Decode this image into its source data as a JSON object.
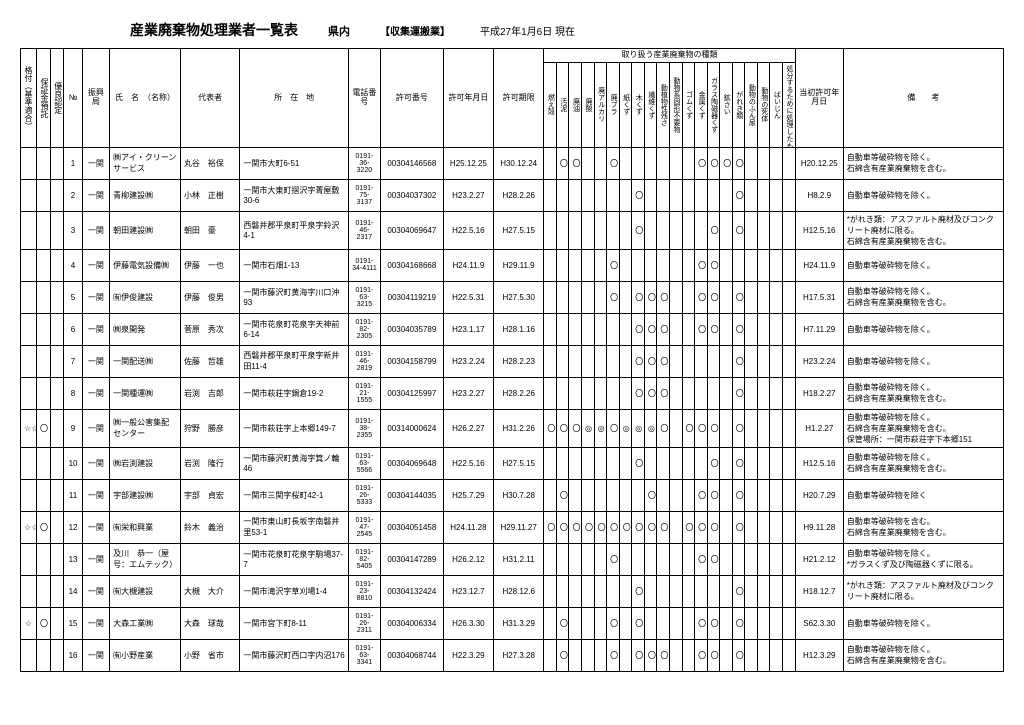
{
  "header": {
    "title": "産業廃棄物処理業者一覧表",
    "region": "県内",
    "type": "【収集運搬業】",
    "as_of": "平成27年1月6日 現在"
  },
  "waste_group_label": "取り扱う産業廃棄物の種類",
  "col_labels": {
    "rank": "格付（基準適合）",
    "deposit": "保証金預託",
    "excellent": "優良認定",
    "no": "№",
    "bureau": "振興局",
    "name": "氏　名　（名称）",
    "rep": "代表者",
    "addr": "所　在　地",
    "tel": "電話番号",
    "permit_no": "許可番号",
    "permit_date": "許可年月日",
    "permit_exp": "許可期限",
    "first_date": "当初許可年月日",
    "note": "備　　考"
  },
  "waste_types": [
    "燃え殻",
    "汚泥",
    "廃油",
    "廃酸",
    "廃アルカリ",
    "廃プラ",
    "紙くず",
    "木くず",
    "繊維くず",
    "動植物性残さ",
    "動物系固形不要物",
    "ゴムくず",
    "金属くず",
    "ガラス陶磁器くず",
    "鉱さい",
    "がれき類",
    "動物のふん尿",
    "動物の死体",
    "ばいじん",
    "処分するために処理したもの"
  ],
  "rows": [
    {
      "no": "1",
      "bureau": "一関",
      "name": "㈱アイ・クリーンサービス",
      "rep": "丸谷　裕保",
      "addr": "一関市大町6-51",
      "tel": "0191-36-3220",
      "pno": "00304146568",
      "pdate": "H25.12.25",
      "pexp": "H30.12.24",
      "w": [
        "",
        "〇",
        "〇",
        "",
        "",
        "〇",
        "",
        "",
        "",
        "",
        "",
        "",
        "〇",
        "〇",
        "〇",
        "〇",
        "",
        "",
        "",
        ""
      ],
      "first": "H20.12.25",
      "note": "自動車等破砕物を除く。\n石綿含有産業廃棄物を含む。"
    },
    {
      "no": "2",
      "bureau": "一関",
      "name": "青柳建設㈱",
      "rep": "小林　正樹",
      "addr": "一関市大東町摺沢字菁屋敷30-6",
      "tel": "0191-75-3137",
      "pno": "00304037302",
      "pdate": "H23.2.27",
      "pexp": "H28.2.26",
      "w": [
        "",
        "",
        "",
        "",
        "",
        "",
        "",
        "〇",
        "",
        "",
        "",
        "",
        "",
        "",
        "",
        "〇",
        "",
        "",
        "",
        ""
      ],
      "first": "H8.2.9",
      "note": "自動車等破砕物を除く。"
    },
    {
      "no": "3",
      "bureau": "一関",
      "name": "朝田建設㈱",
      "rep": "朝田　豪",
      "addr": "西磐井郡平泉町平泉字鈴沢4-1",
      "tel": "0191-46-2317",
      "pno": "00304069647",
      "pdate": "H22.5.16",
      "pexp": "H27.5.15",
      "w": [
        "",
        "",
        "",
        "",
        "",
        "",
        "",
        "〇",
        "",
        "",
        "",
        "",
        "",
        "〇",
        "",
        "〇",
        "",
        "",
        "",
        ""
      ],
      "first": "H12.5.16",
      "note": "*がれき類：アスファルト廃材及びコンクリート廃材に限る。\n石綿含有産業廃棄物を含む。"
    },
    {
      "no": "4",
      "bureau": "一関",
      "name": "伊藤電気設備㈱",
      "rep": "伊藤　一也",
      "addr": "一関市石畑1-13",
      "tel": "0191-34-4111",
      "pno": "00304168668",
      "pdate": "H24.11.9",
      "pexp": "H29.11.9",
      "w": [
        "",
        "",
        "",
        "",
        "",
        "〇",
        "",
        "",
        "",
        "",
        "",
        "",
        "〇",
        "〇",
        "",
        "",
        "",
        "",
        "",
        ""
      ],
      "first": "H24.11.9",
      "note": "自動車等破砕物を除く。"
    },
    {
      "no": "5",
      "bureau": "一関",
      "name": "㈲伊俊建設",
      "rep": "伊藤　俊男",
      "addr": "一関市藤沢町黄海字川口沖93",
      "tel": "0191-63-3215",
      "pno": "00304119219",
      "pdate": "H22.5.31",
      "pexp": "H27.5.30",
      "w": [
        "",
        "",
        "",
        "",
        "",
        "〇",
        "",
        "〇",
        "〇",
        "〇",
        "",
        "",
        "〇",
        "〇",
        "",
        "〇",
        "",
        "",
        "",
        ""
      ],
      "first": "H17.5.31",
      "note": "自動車等破砕物を除く。\n石綿含有産業廃棄物を含む。"
    },
    {
      "no": "6",
      "bureau": "一関",
      "name": "㈱泉開発",
      "rep": "菅原　秀次",
      "addr": "一関市花泉町花泉字天神前6-14",
      "tel": "0191-82-2305",
      "pno": "00304035789",
      "pdate": "H23.1.17",
      "pexp": "H28.1.16",
      "w": [
        "",
        "",
        "",
        "",
        "",
        "",
        "",
        "〇",
        "〇",
        "〇",
        "",
        "",
        "〇",
        "〇",
        "",
        "〇",
        "",
        "",
        "",
        ""
      ],
      "first": "H7.11.29",
      "note": "自動車等破砕物を除く。"
    },
    {
      "no": "7",
      "bureau": "一関",
      "name": "一関配送㈱",
      "rep": "佐藤　哲雄",
      "addr": "西磐井郡平泉町平泉字新井田11-4",
      "tel": "0191-46-2819",
      "pno": "00304158799",
      "pdate": "H23.2.24",
      "pexp": "H28.2.23",
      "w": [
        "",
        "",
        "",
        "",
        "",
        "",
        "",
        "〇",
        "〇",
        "〇",
        "",
        "",
        "",
        "",
        "",
        "〇",
        "",
        "",
        "",
        ""
      ],
      "first": "H23.2.24",
      "note": "自動車等破砕物を除く。"
    },
    {
      "no": "8",
      "bureau": "一関",
      "name": "一関種運㈱",
      "rep": "岩渕　吉郎",
      "addr": "一関市萩荘字鍋倉19-2",
      "tel": "0191-21-1555",
      "pno": "00304125997",
      "pdate": "H23.2.27",
      "pexp": "H28.2.26",
      "w": [
        "",
        "",
        "",
        "",
        "",
        "",
        "",
        "〇",
        "〇",
        "〇",
        "",
        "",
        "",
        "",
        "",
        "〇",
        "",
        "",
        "",
        ""
      ],
      "first": "H18.2.27",
      "note": "自動車等破砕物を除く。\n石綿含有産業廃棄物を含む。"
    },
    {
      "star": "☆☆",
      "o": "〇",
      "no": "9",
      "bureau": "一関",
      "name": "㈱一般公害集配センター",
      "rep": "狩野　勝彦",
      "addr": "一関市萩荘字上本郷149-7",
      "tel": "0191-38-2355",
      "pno": "00314000624",
      "pdate": "H26.2.27",
      "pexp": "H31.2.26",
      "w": [
        "〇",
        "〇",
        "〇",
        "◎",
        "◎",
        "〇",
        "◎",
        "◎",
        "◎",
        "〇",
        "",
        "〇",
        "〇",
        "〇",
        "",
        "〇",
        "",
        "",
        "",
        ""
      ],
      "first": "H1.2.27",
      "note": "自動車等破砕物を除く。\n石綿含有産業廃棄物を含む。\n保管場所：一関市萩荘字下本郷151"
    },
    {
      "no": "10",
      "bureau": "一関",
      "name": "㈱岩渕建設",
      "rep": "岩渕　隆行",
      "addr": "一関市藤沢町黄海字箕ノ輪46",
      "tel": "0191-63-5566",
      "pno": "00304069648",
      "pdate": "H22.5.16",
      "pexp": "H27.5.15",
      "w": [
        "",
        "",
        "",
        "",
        "",
        "",
        "",
        "〇",
        "",
        "",
        "",
        "",
        "",
        "〇",
        "",
        "〇",
        "",
        "",
        "",
        ""
      ],
      "first": "H12.5.16",
      "note": "自動車等破砕物を除く。\n石綿含有産業廃棄物を含む。"
    },
    {
      "no": "11",
      "bureau": "一関",
      "name": "宇部建設㈱",
      "rep": "宇部　貞宏",
      "addr": "一関市三関字桜町42-1",
      "tel": "0191-26-5333",
      "pno": "00304144035",
      "pdate": "H25.7.29",
      "pexp": "H30.7.28",
      "w": [
        "",
        "〇",
        "",
        "",
        "",
        "",
        "",
        "",
        "〇",
        "",
        "",
        "",
        "〇",
        "〇",
        "",
        "〇",
        "",
        "",
        "",
        ""
      ],
      "first": "H20.7.29",
      "note": "自動車等破砕物を除く"
    },
    {
      "star": "☆☆",
      "o": "〇",
      "no": "12",
      "bureau": "一関",
      "name": "㈲栄和興業",
      "rep": "鈴木　義治",
      "addr": "一関市東山町長坂字南磐井里53-1",
      "tel": "0191-47-2545",
      "pno": "00304051458",
      "pdate": "H24.11.28",
      "pexp": "H29.11.27",
      "w": [
        "〇",
        "〇",
        "〇",
        "〇",
        "〇",
        "〇",
        "〇",
        "〇",
        "〇",
        "〇",
        "",
        "〇",
        "〇",
        "〇",
        "",
        "〇",
        "",
        "",
        "",
        ""
      ],
      "first": "H9.11.28",
      "note": "自動車等破砕物を含む。\n石綿含有産業廃棄物を含む。"
    },
    {
      "no": "13",
      "bureau": "一関",
      "name": "及川　恭一（屋号：エムテック）",
      "rep": "",
      "addr": "一関市花泉町花泉字駒場37-7",
      "tel": "0191-82-5405",
      "pno": "00304147289",
      "pdate": "H26.2.12",
      "pexp": "H31.2.11",
      "w": [
        "",
        "",
        "",
        "",
        "",
        "〇",
        "",
        "",
        "",
        "",
        "",
        "",
        "〇",
        "〇",
        "",
        "",
        "",
        "",
        "",
        ""
      ],
      "marker": "※",
      "first": "H21.2.12",
      "note": "自動車等破砕物を除く。\n*ガラスくず及び陶磁器くずに限る。"
    },
    {
      "no": "14",
      "bureau": "一関",
      "name": "㈲大槻建設",
      "rep": "大槻　大介",
      "addr": "一関市滝沢字草刈場1-4",
      "tel": "0191-23-8810",
      "pno": "00304132424",
      "pdate": "H23.12.7",
      "pexp": "H28.12.6",
      "w": [
        "",
        "",
        "",
        "",
        "",
        "",
        "",
        "〇",
        "",
        "",
        "",
        "",
        "",
        "",
        "",
        "〇",
        "",
        "",
        "",
        ""
      ],
      "first": "H18.12.7",
      "note": "*がれき類：アスファルト廃材及びコンクリート廃材に限る。"
    },
    {
      "star": "☆",
      "o": "〇",
      "no": "15",
      "bureau": "一関",
      "name": "大森工業㈱",
      "rep": "大森　球哉",
      "addr": "一関市宮下町8-11",
      "tel": "0191-26-2311",
      "pno": "00304006334",
      "pdate": "H26.3.30",
      "pexp": "H31.3.29",
      "w": [
        "",
        "〇",
        "",
        "",
        "",
        "〇",
        "",
        "〇",
        "",
        "",
        "",
        "",
        "〇",
        "〇",
        "",
        "〇",
        "",
        "",
        "",
        ""
      ],
      "first": "S62.3.30",
      "note": "自動車等破砕物を除く。"
    },
    {
      "no": "16",
      "bureau": "一関",
      "name": "㈲小野産業",
      "rep": "小野　省市",
      "addr": "一関市藤沢町西口字内沼176",
      "tel": "0191-63-3341",
      "pno": "00304068744",
      "pdate": "H22.3.29",
      "pexp": "H27.3.28",
      "w": [
        "",
        "〇",
        "",
        "",
        "",
        "〇",
        "",
        "〇",
        "〇",
        "〇",
        "",
        "",
        "〇",
        "〇",
        "",
        "〇",
        "",
        "",
        "",
        ""
      ],
      "first": "H12.3.29",
      "note": "自動車等破砕物を除く。\n石綿含有産業廃棄物を含む。"
    }
  ]
}
